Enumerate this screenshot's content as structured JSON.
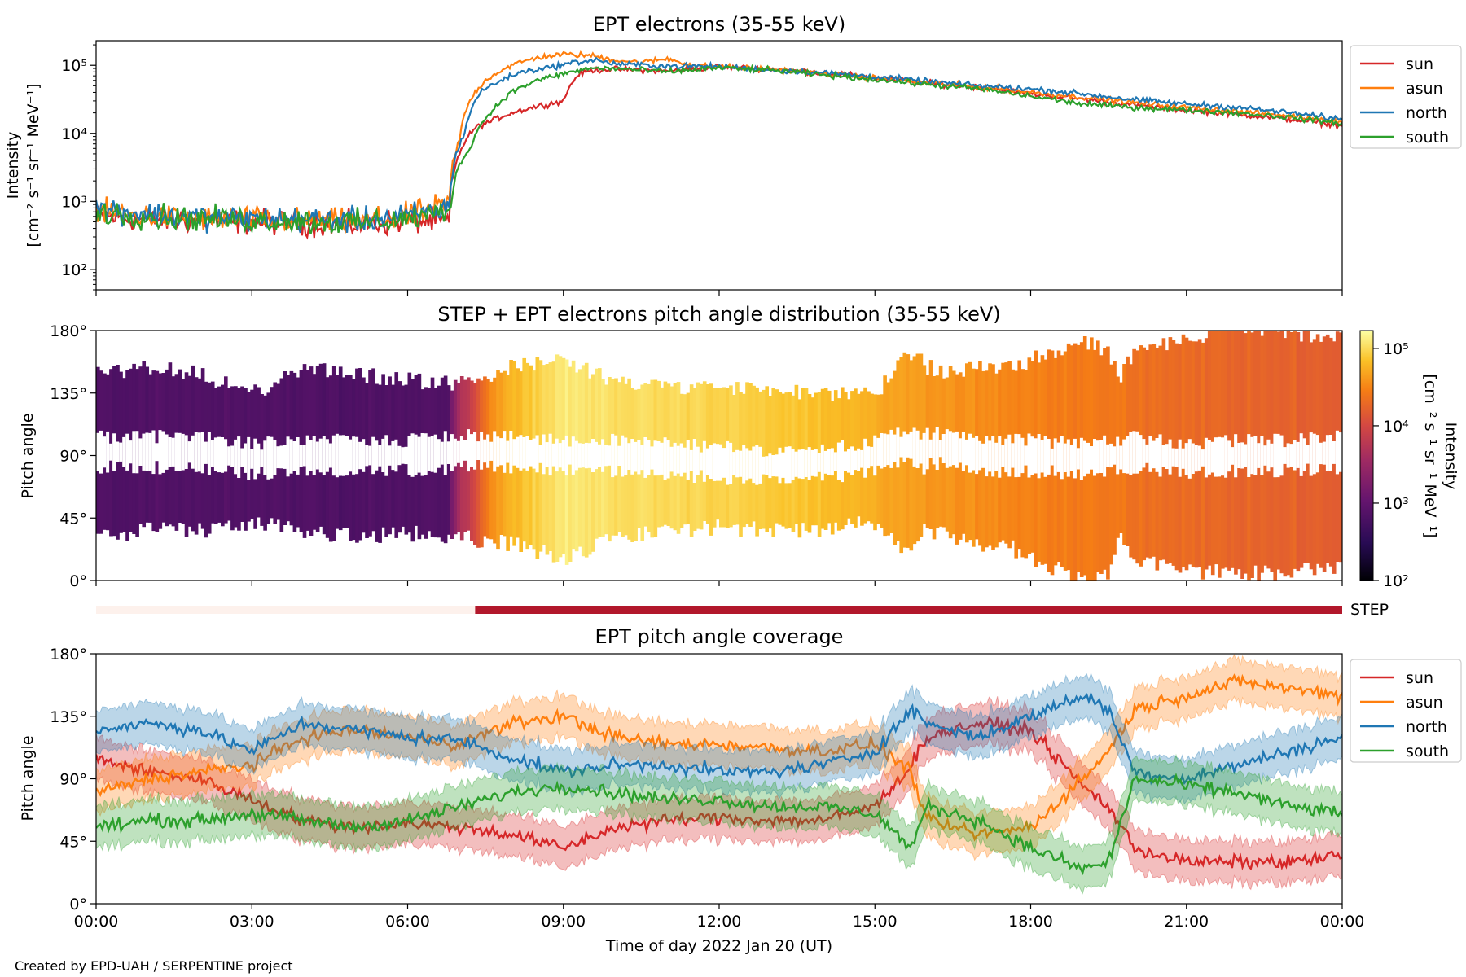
{
  "footer": {
    "credit": "Created by EPD-UAH / SERPENTINE project"
  },
  "colors": {
    "sun": "#d62728",
    "asun": "#ff7f0e",
    "north": "#1f77b4",
    "south": "#2ca02c",
    "step_off": "#fdf1ec",
    "step_on": "#b2182b"
  },
  "chart_data": [
    {
      "type": "line",
      "title": "EPT electrons (35-55 keV)",
      "xlabel": "",
      "ylabel": "Intensity",
      "ylabel_units": "[cm⁻² s⁻¹ sr⁻¹ MeV⁻¹]",
      "yscale": "log",
      "ylim": [
        50,
        230000
      ],
      "xlim_hours": [
        0,
        24
      ],
      "ytick_labels": [
        "10²",
        "10³",
        "10⁴",
        "10⁵"
      ],
      "ytick_values": [
        100,
        1000,
        10000,
        100000
      ],
      "legend": "top-right outside",
      "series": [
        {
          "name": "sun",
          "x_hours": [
            0,
            1,
            2,
            3,
            4,
            5,
            6,
            6.8,
            7.3,
            7.6,
            8,
            8.5,
            9,
            9.3,
            9.6,
            10,
            11,
            12,
            13,
            14,
            15,
            16,
            17,
            18,
            19,
            20,
            21,
            22,
            23,
            24
          ],
          "values": [
            600,
            550,
            520,
            500,
            480,
            450,
            520,
            500,
            12000,
            15000,
            20000,
            25000,
            30000,
            75000,
            85000,
            88000,
            82000,
            95000,
            88000,
            78000,
            65000,
            55000,
            48000,
            38000,
            32000,
            26000,
            22000,
            19000,
            16000,
            13000
          ]
        },
        {
          "name": "asun",
          "x_hours": [
            0,
            1,
            2,
            3,
            4,
            5,
            6,
            6.8,
            7.0,
            7.2,
            7.5,
            8,
            8.5,
            9,
            9.5,
            10,
            10.5,
            11,
            11.5,
            12,
            13,
            14,
            15,
            16,
            17,
            18,
            19,
            20,
            21,
            22,
            23,
            24
          ],
          "values": [
            700,
            600,
            560,
            540,
            520,
            500,
            600,
            900,
            8000,
            30000,
            60000,
            100000,
            130000,
            145000,
            140000,
            120000,
            110000,
            125000,
            100000,
            95000,
            88000,
            75000,
            65000,
            55000,
            48000,
            40000,
            34000,
            28000,
            24000,
            21000,
            18000,
            15000
          ]
        },
        {
          "name": "north",
          "x_hours": [
            0,
            1,
            2,
            3,
            4,
            5,
            6,
            6.8,
            7.1,
            7.4,
            7.8,
            8.2,
            8.8,
            9.2,
            9.6,
            10,
            11,
            12,
            13,
            14,
            15,
            16,
            17,
            18,
            19,
            20,
            21,
            22,
            23,
            24
          ],
          "values": [
            800,
            650,
            580,
            560,
            540,
            520,
            600,
            800,
            10000,
            40000,
            60000,
            80000,
            95000,
            110000,
            120000,
            105000,
            98000,
            96000,
            85000,
            78000,
            68000,
            58000,
            50000,
            45000,
            38000,
            31000,
            27000,
            24000,
            20000,
            16000
          ]
        },
        {
          "name": "south",
          "x_hours": [
            0,
            1,
            2,
            3,
            4,
            5,
            6,
            6.8,
            7.2,
            7.6,
            8,
            8.5,
            9,
            9.5,
            10,
            11,
            12,
            13,
            14,
            15,
            16,
            17,
            18,
            19,
            20,
            21,
            22,
            23,
            24
          ],
          "values": [
            700,
            600,
            550,
            530,
            510,
            480,
            550,
            700,
            6000,
            20000,
            40000,
            60000,
            75000,
            90000,
            90000,
            80000,
            92000,
            85000,
            72000,
            62000,
            52000,
            45000,
            35000,
            27000,
            24000,
            22000,
            20000,
            17000,
            14000
          ]
        }
      ]
    },
    {
      "type": "heatmap",
      "title": "STEP + EPT electrons pitch angle distribution (35-55 keV)",
      "ylabel": "Pitch angle",
      "ylim_deg": [
        0,
        180
      ],
      "ytick_labels": [
        "0°",
        "45°",
        "90°",
        "135°",
        "180°"
      ],
      "ytick_values": [
        0,
        45,
        90,
        135,
        180
      ],
      "colorbar": {
        "label": "Intensity",
        "units": "[cm⁻² s⁻¹ sr⁻¹ MeV⁻¹]",
        "scale": "log",
        "range": [
          100,
          170000
        ],
        "colormap": "inferno",
        "tick_labels": [
          "10²",
          "10³",
          "10⁴",
          "10⁵"
        ],
        "tick_values": [
          100,
          1000,
          10000,
          100000
        ]
      },
      "intensity_profile": {
        "x_hours": [
          0,
          6.8,
          7.3,
          8,
          9,
          10,
          12,
          14,
          15.5,
          18,
          21,
          24
        ],
        "values": [
          700,
          700,
          9000,
          60000,
          120000,
          110000,
          90000,
          70000,
          45000,
          30000,
          20000,
          15000
        ]
      }
    },
    {
      "type": "bar",
      "label": "STEP",
      "segments": [
        {
          "start_hour": 0,
          "end_hour": 7.3,
          "state": "off"
        },
        {
          "start_hour": 7.3,
          "end_hour": 24,
          "state": "on"
        }
      ]
    },
    {
      "type": "line",
      "title": "EPT pitch angle coverage",
      "xlabel": "Time of day 2022 Jan 20 (UT)",
      "ylabel": "Pitch angle",
      "ylim_deg": [
        0,
        180
      ],
      "ytick_labels": [
        "0°",
        "45°",
        "90°",
        "135°",
        "180°"
      ],
      "ytick_values": [
        0,
        45,
        90,
        135,
        180
      ],
      "xtick_labels": [
        "00:00",
        "03:00",
        "06:00",
        "09:00",
        "12:00",
        "15:00",
        "18:00",
        "21:00",
        "00:00"
      ],
      "xtick_hours": [
        0,
        3,
        6,
        9,
        12,
        15,
        18,
        21,
        24
      ],
      "legend": "top-right outside",
      "band_half_width_deg": 15,
      "series": [
        {
          "name": "sun",
          "x_hours": [
            0,
            1,
            2,
            3,
            4,
            5,
            6,
            7,
            8,
            9,
            10,
            11,
            12,
            13,
            14,
            15,
            15.7,
            16,
            17,
            18,
            19,
            19.5,
            20,
            21,
            22,
            23,
            24
          ],
          "values": [
            105,
            95,
            90,
            75,
            60,
            55,
            58,
            55,
            50,
            40,
            55,
            60,
            62,
            60,
            60,
            70,
            100,
            120,
            130,
            125,
            85,
            70,
            40,
            30,
            30,
            30,
            35
          ]
        },
        {
          "name": "asun",
          "x_hours": [
            0,
            1,
            2,
            3,
            4,
            5,
            6,
            7,
            8,
            9,
            10,
            11,
            12,
            13,
            14,
            15,
            15.7,
            16,
            17,
            18,
            19,
            19.5,
            20,
            21,
            22,
            23,
            24
          ],
          "values": [
            80,
            90,
            95,
            100,
            120,
            125,
            120,
            115,
            130,
            135,
            120,
            115,
            115,
            112,
            110,
            115,
            95,
            60,
            50,
            55,
            90,
            110,
            140,
            150,
            160,
            155,
            150
          ]
        },
        {
          "name": "north",
          "x_hours": [
            0,
            1,
            2,
            3,
            4,
            5,
            6,
            7,
            8,
            9,
            10,
            11,
            12,
            13,
            14,
            15,
            15.7,
            16,
            17,
            18,
            19,
            19.5,
            20,
            21,
            22,
            23,
            24
          ],
          "values": [
            125,
            130,
            125,
            110,
            130,
            125,
            120,
            118,
            105,
            95,
            100,
            100,
            95,
            95,
            100,
            110,
            140,
            130,
            120,
            135,
            150,
            140,
            95,
            90,
            100,
            110,
            120
          ]
        },
        {
          "name": "south",
          "x_hours": [
            0,
            1,
            2,
            3,
            4,
            5,
            6,
            7,
            8,
            9,
            10,
            11,
            12,
            13,
            14,
            15,
            15.7,
            16,
            17,
            18,
            19,
            19.5,
            20,
            21,
            22,
            23,
            24
          ],
          "values": [
            55,
            60,
            60,
            65,
            60,
            55,
            60,
            70,
            80,
            85,
            80,
            75,
            75,
            70,
            70,
            65,
            40,
            70,
            60,
            40,
            25,
            30,
            90,
            85,
            80,
            70,
            65
          ]
        }
      ]
    }
  ]
}
